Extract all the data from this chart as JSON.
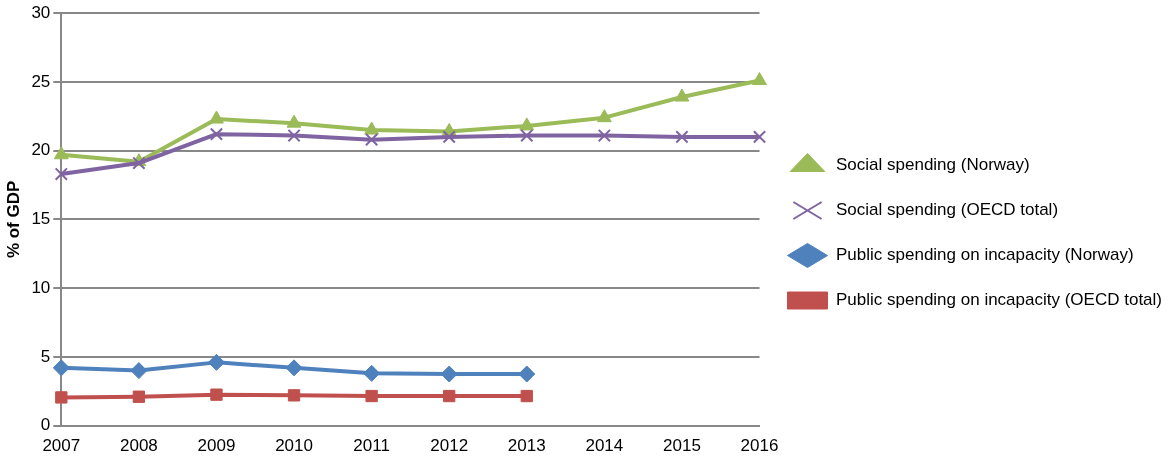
{
  "chart_data": {
    "type": "line",
    "ylabel": "% of GDP",
    "categories": [
      "2007",
      "2008",
      "2009",
      "2010",
      "2011",
      "2012",
      "2013",
      "2014",
      "2015",
      "2016"
    ],
    "series": [
      {
        "name": "Social spending (Norway)",
        "color": "#9bbb59",
        "marker": "triangle",
        "values": [
          19.7,
          19.2,
          22.3,
          22.0,
          21.5,
          21.4,
          21.8,
          22.4,
          23.9,
          25.1
        ]
      },
      {
        "name": "Social spending (OECD total)",
        "color": "#8064a2",
        "marker": "cross",
        "values": [
          18.3,
          19.1,
          21.2,
          21.1,
          20.8,
          21.0,
          21.1,
          21.1,
          21.0,
          21.0
        ]
      },
      {
        "name": "Public spending on incapacity (Norway)",
        "color": "#4f81bd",
        "marker": "diamond",
        "values": [
          4.2,
          4.0,
          4.6,
          4.2,
          3.8,
          3.75,
          3.75,
          null,
          null,
          null
        ]
      },
      {
        "name": "Public spending on incapacity (OECD total)",
        "color": "#c0504d",
        "marker": "square",
        "values": [
          2.05,
          2.1,
          2.25,
          2.2,
          2.15,
          2.15,
          2.15,
          null,
          null,
          null
        ]
      }
    ],
    "ylim": [
      0,
      30
    ],
    "yticks": [
      0,
      5,
      10,
      15,
      20,
      25,
      30
    ],
    "grid": "y",
    "legend": "right"
  }
}
